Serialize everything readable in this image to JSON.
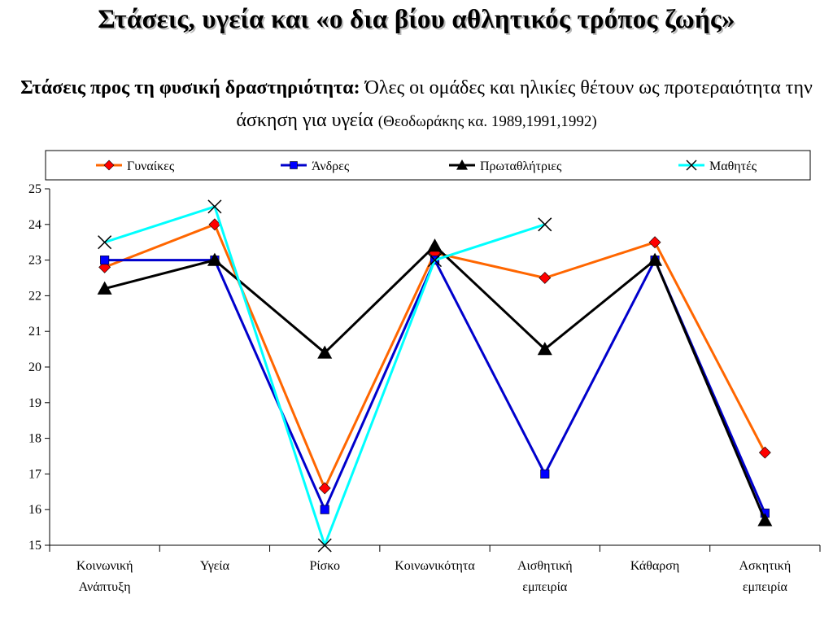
{
  "title": "Στάσεις, υγεία και «ο δια βίου αθλητικός τρόπος ζωής»",
  "subtitle": {
    "lead": "Στάσεις προς τη φυσική δραστηριότητα:",
    "text": "Όλες οι ομάδες και ηλικίες θέτουν ως προτεραιότητα την άσκηση για υγεία",
    "citation": "(Θεοδωράκης κα. 1989,1991,1992)"
  },
  "chart_data": {
    "type": "line",
    "categories": [
      [
        "Κοινωνική",
        "Ανάπτυξη"
      ],
      [
        "Υγεία"
      ],
      [
        "Ρίσκο"
      ],
      [
        "Κοινωνικότητα"
      ],
      [
        "Αισθητική",
        "εμπειρία"
      ],
      [
        "Κάθαρση"
      ],
      [
        "Ασκητική",
        "εμπειρία"
      ]
    ],
    "ylim": [
      15,
      25
    ],
    "yticks": [
      15,
      16,
      17,
      18,
      19,
      20,
      21,
      22,
      23,
      24,
      25
    ],
    "legend_position": "top",
    "grid": false,
    "series": [
      {
        "name": "Γυναίκες",
        "color": "#ff6600",
        "marker": "diamond",
        "marker_color": "#ff0000",
        "values": [
          22.8,
          24.0,
          16.6,
          23.2,
          22.5,
          23.5,
          17.6
        ]
      },
      {
        "name": "Άνδρες",
        "color": "#0000cc",
        "marker": "square",
        "marker_color": "#0000ff",
        "values": [
          23.0,
          23.0,
          16.0,
          23.0,
          17.0,
          23.0,
          15.9
        ]
      },
      {
        "name": "Πρωταθλήτριες",
        "color": "#000000",
        "marker": "triangle",
        "marker_color": "#000000",
        "values": [
          22.2,
          23.0,
          20.4,
          23.4,
          20.5,
          23.0,
          15.7
        ]
      },
      {
        "name": "Μαθητές",
        "color": "#00ffff",
        "marker": "x",
        "marker_color": "#000000",
        "values": [
          23.5,
          24.5,
          15.0,
          23.0,
          24.0,
          null,
          null
        ]
      }
    ]
  }
}
